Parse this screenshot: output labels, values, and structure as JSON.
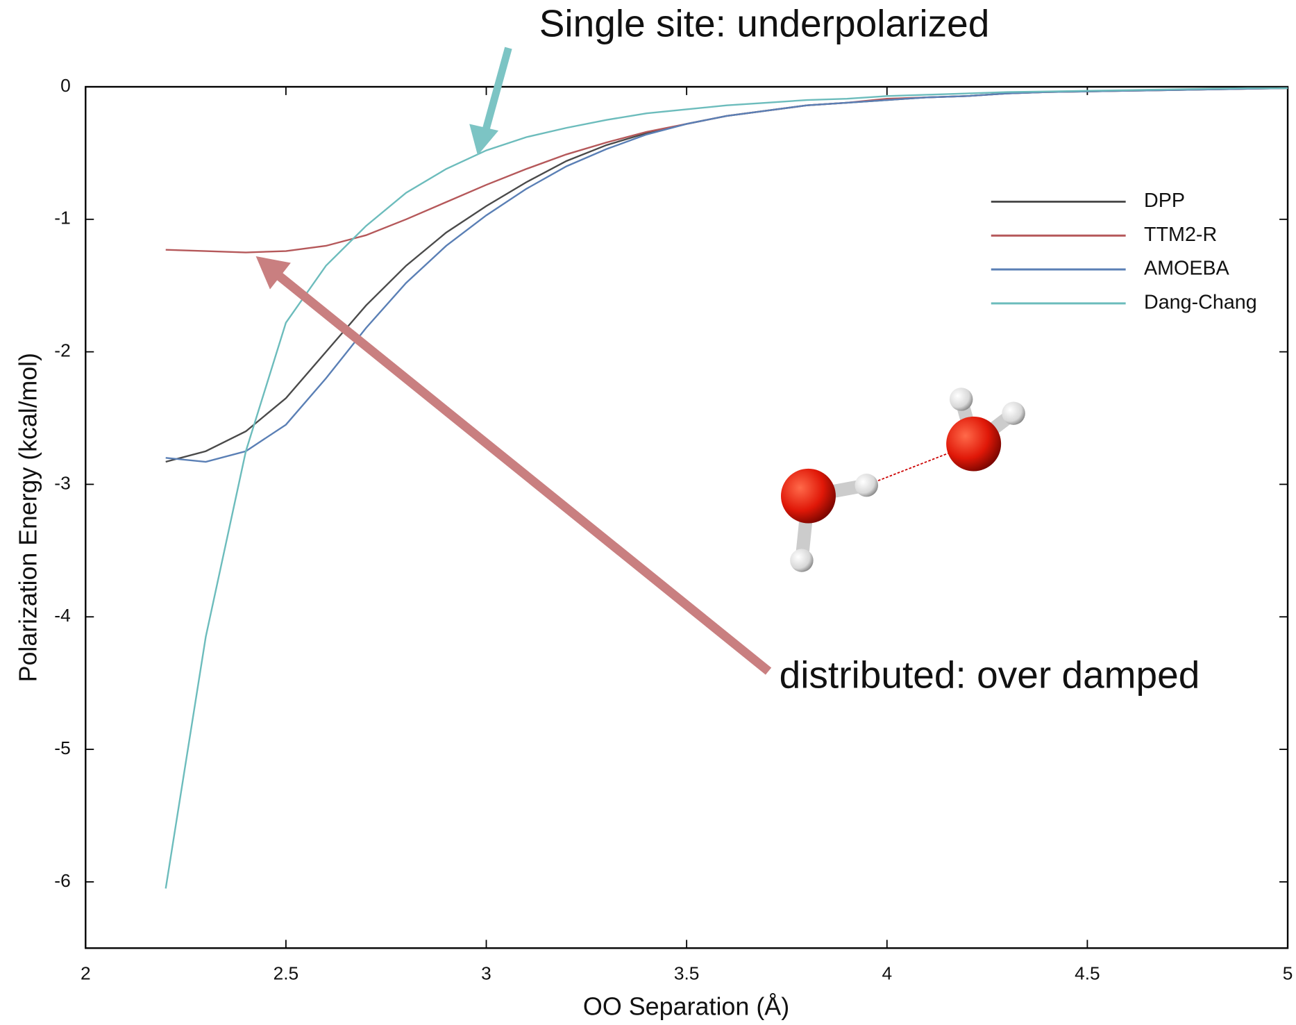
{
  "chart_data": {
    "type": "line",
    "x": [
      2.2,
      2.3,
      2.4,
      2.5,
      2.6,
      2.7,
      2.8,
      2.9,
      3.0,
      3.1,
      3.2,
      3.3,
      3.4,
      3.5,
      3.6,
      3.7,
      3.8,
      3.9,
      4.0,
      4.1,
      4.2,
      4.3,
      4.4,
      4.5,
      4.6,
      4.7,
      4.8,
      4.9,
      5.0
    ],
    "series": [
      {
        "name": "DPP",
        "color": "#4a4a4a",
        "values": [
          -2.83,
          -2.75,
          -2.6,
          -2.35,
          -2.0,
          -1.65,
          -1.35,
          -1.1,
          -0.9,
          -0.72,
          -0.56,
          -0.44,
          -0.35,
          -0.28,
          -0.22,
          -0.18,
          -0.14,
          -0.12,
          -0.1,
          -0.08,
          -0.07,
          -0.05,
          -0.04,
          -0.035,
          -0.03,
          -0.025,
          -0.02,
          -0.015,
          -0.01
        ]
      },
      {
        "name": "TTM2-R",
        "color": "#b5585a",
        "values": [
          -1.23,
          -1.24,
          -1.25,
          -1.24,
          -1.2,
          -1.12,
          -1.0,
          -0.87,
          -0.74,
          -0.62,
          -0.51,
          -0.42,
          -0.34,
          -0.28,
          -0.22,
          -0.18,
          -0.14,
          -0.12,
          -0.09,
          -0.08,
          -0.07,
          -0.05,
          -0.04,
          -0.035,
          -0.03,
          -0.025,
          -0.02,
          -0.015,
          -0.01
        ]
      },
      {
        "name": "AMOEBA",
        "color": "#5a7fb5",
        "values": [
          -2.8,
          -2.83,
          -2.75,
          -2.55,
          -2.2,
          -1.82,
          -1.48,
          -1.2,
          -0.97,
          -0.77,
          -0.6,
          -0.47,
          -0.36,
          -0.28,
          -0.22,
          -0.18,
          -0.14,
          -0.12,
          -0.1,
          -0.08,
          -0.07,
          -0.05,
          -0.04,
          -0.035,
          -0.03,
          -0.025,
          -0.02,
          -0.015,
          -0.01
        ]
      },
      {
        "name": "Dang-Chang",
        "color": "#6cbcbc",
        "values": [
          -6.05,
          -4.15,
          -2.75,
          -1.78,
          -1.35,
          -1.05,
          -0.8,
          -0.62,
          -0.48,
          -0.38,
          -0.31,
          -0.25,
          -0.2,
          -0.17,
          -0.14,
          -0.12,
          -0.1,
          -0.09,
          -0.07,
          -0.06,
          -0.05,
          -0.04,
          -0.035,
          -0.03,
          -0.025,
          -0.02,
          -0.015,
          -0.01,
          -0.01
        ]
      }
    ],
    "xlabel": "OO Separation (Å)",
    "ylabel": "Polarization Energy (kcal/mol)",
    "xlim": [
      2,
      5
    ],
    "ylim": [
      -6.5,
      0
    ],
    "xticks": [
      2,
      2.5,
      3,
      3.5,
      4,
      4.5,
      5
    ],
    "yticks": [
      0,
      -1,
      -2,
      -3,
      -4,
      -5,
      -6
    ],
    "legend": "upper right",
    "annotations": [
      "Single site: underpolarized",
      "distributed: over damped"
    ]
  }
}
